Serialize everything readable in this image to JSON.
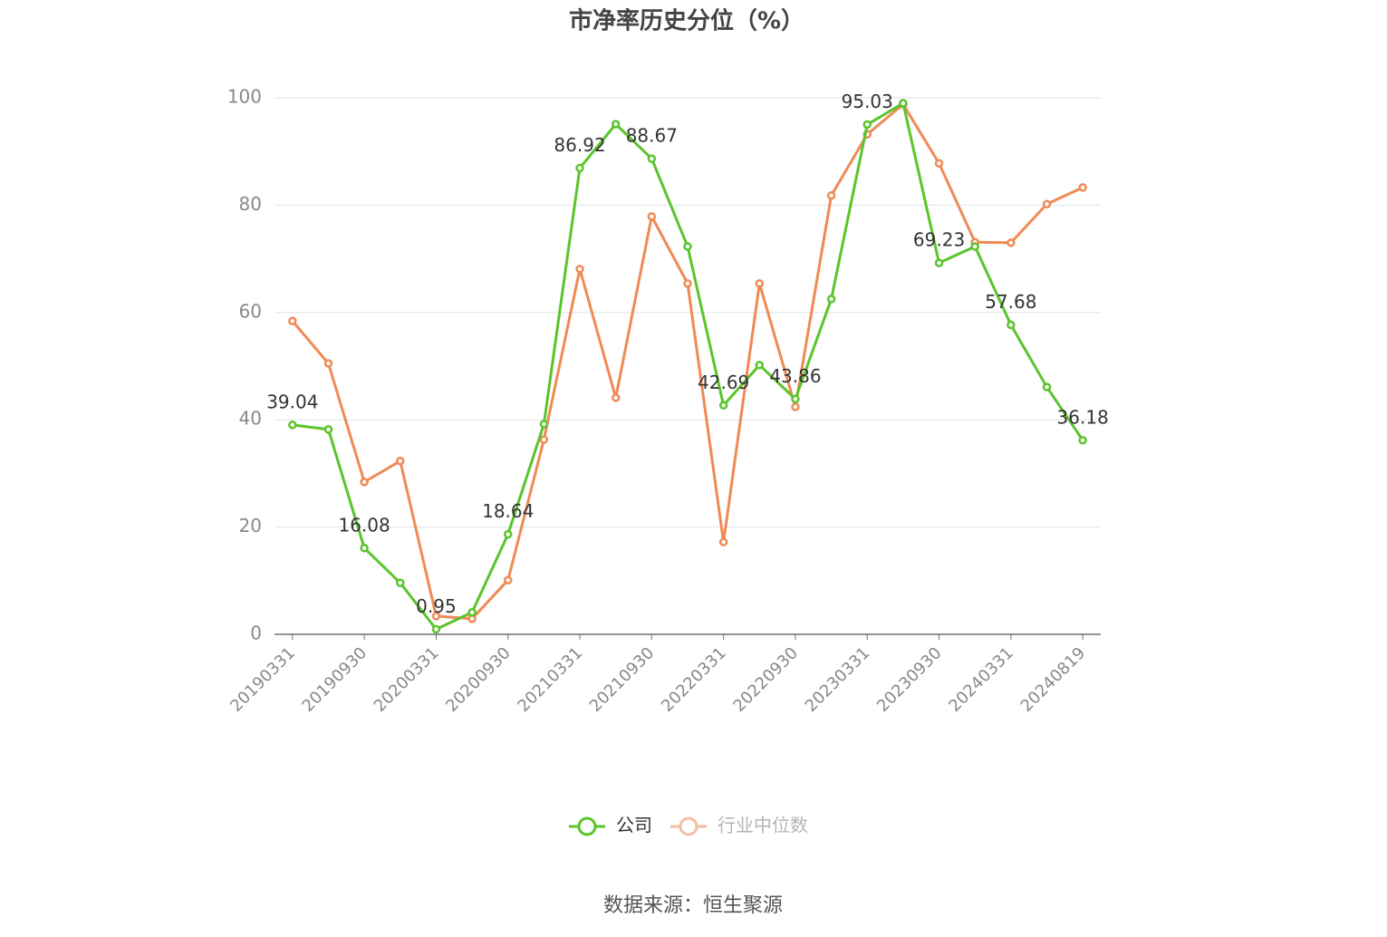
{
  "chart_data": {
    "type": "line",
    "title": "市净率历史分位（%）",
    "source": "数据来源：恒生聚源",
    "categories": [
      "20190331",
      null,
      "20190930",
      null,
      "20200331",
      null,
      "20200930",
      null,
      "20210331",
      null,
      "20210930",
      null,
      "20220331",
      null,
      "20220930",
      null,
      "20230331",
      null,
      "20230930",
      null,
      "20240331",
      null,
      "20240819"
    ],
    "series": [
      {
        "name": "公司",
        "color": "#5bc42b",
        "label_step": 2,
        "values": [
          39.04,
          38.2,
          16.08,
          9.6,
          0.95,
          4.1,
          18.64,
          39.2,
          86.92,
          95.1,
          88.67,
          72.3,
          42.69,
          50.2,
          43.86,
          62.5,
          95.03,
          99.0,
          69.23,
          72.3,
          57.68,
          46.1,
          36.18
        ]
      },
      {
        "name": "行业中位数",
        "color": "#f08a55",
        "values": [
          58.4,
          50.5,
          28.4,
          32.3,
          3.4,
          2.9,
          10.1,
          36.3,
          68.1,
          44.1,
          77.9,
          65.4,
          17.2,
          65.4,
          42.4,
          81.8,
          93.2,
          98.8,
          87.8,
          73.1,
          73.0,
          80.2,
          83.3
        ]
      }
    ],
    "ylim": [
      0,
      100
    ],
    "yticks": [
      0,
      20,
      40,
      60,
      80,
      100
    ],
    "grid": true
  }
}
